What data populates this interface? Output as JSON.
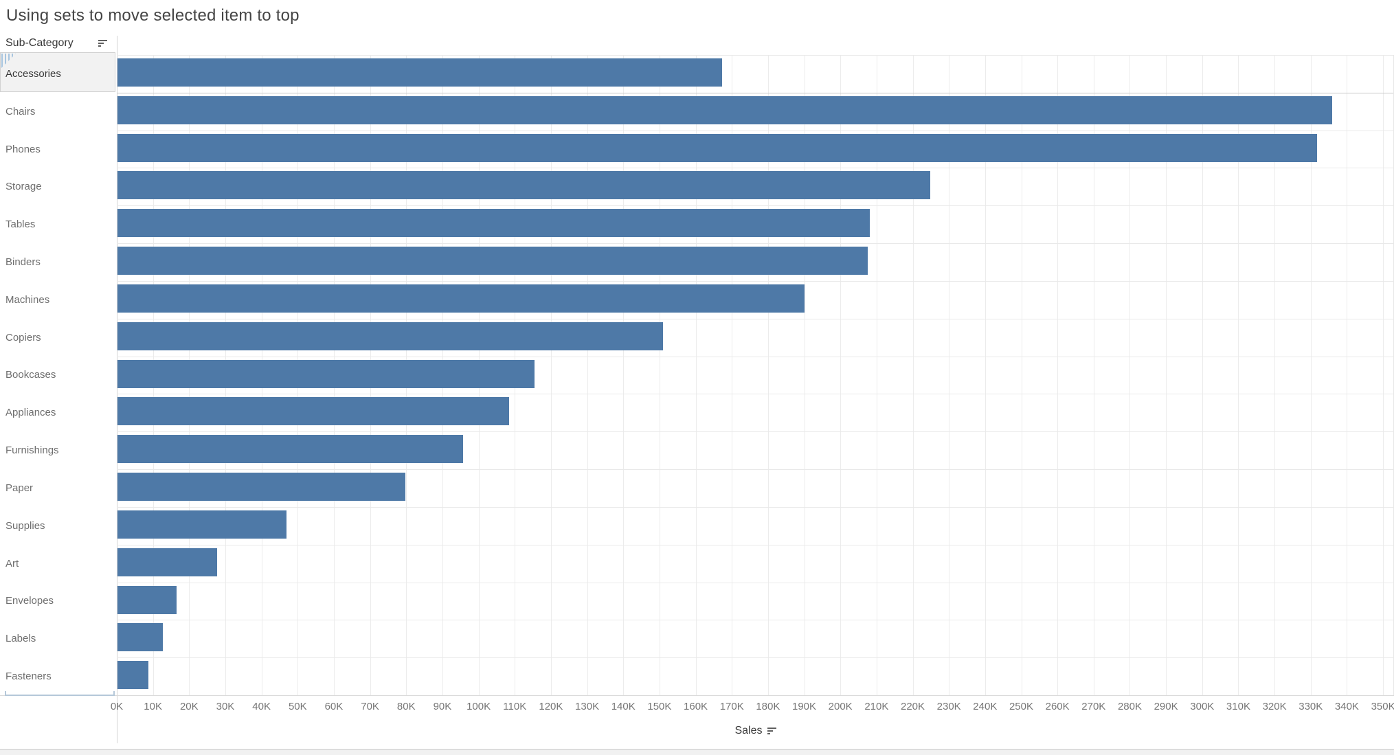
{
  "title": "Using sets to move selected item to top",
  "row_header": {
    "label": "Sub-Category",
    "sort_icon": "sort-descending-icon"
  },
  "x_axis": {
    "label": "Sales",
    "sort_icon": "sort-descending-icon",
    "tick_labels": [
      "0K",
      "10K",
      "20K",
      "30K",
      "40K",
      "50K",
      "60K",
      "70K",
      "80K",
      "90K",
      "100K",
      "110K",
      "120K",
      "130K",
      "140K",
      "150K",
      "160K",
      "170K",
      "180K",
      "190K",
      "200K",
      "210K",
      "220K",
      "230K",
      "240K",
      "250K",
      "260K",
      "270K",
      "280K",
      "290K",
      "300K",
      "310K",
      "320K",
      "330K",
      "340K",
      "350K"
    ]
  },
  "selection": {
    "selected_row": "Accessories"
  },
  "colors": {
    "bar": "#4e79a7",
    "title_text": "#454545",
    "row_label_text": "#6f6f6f",
    "tick_text": "#767676",
    "highlight_bg": "#f2f2f2",
    "highlight_border": "#d2d2d2",
    "grip_stripe": "#a7c5df",
    "gridline": "#ececec"
  },
  "chart_data": {
    "type": "bar",
    "orientation": "horizontal",
    "title": "Using sets to move selected item to top",
    "categories": [
      "Accessories",
      "Chairs",
      "Phones",
      "Storage",
      "Tables",
      "Binders",
      "Machines",
      "Copiers",
      "Bookcases",
      "Appliances",
      "Furnishings",
      "Paper",
      "Supplies",
      "Art",
      "Envelopes",
      "Labels",
      "Fasteners"
    ],
    "values": [
      167200,
      335700,
      331600,
      224600,
      207900,
      207300,
      189900,
      150700,
      115200,
      108200,
      95500,
      79500,
      46700,
      27600,
      16400,
      12600,
      8500
    ],
    "xlabel": "Sales",
    "ylabel": "Sub-Category",
    "xlim": [
      0,
      353000
    ],
    "x_tick_step": 10000,
    "grid": true,
    "legend": "none",
    "bar_color": "#4e79a7",
    "selected_category": "Accessories"
  }
}
